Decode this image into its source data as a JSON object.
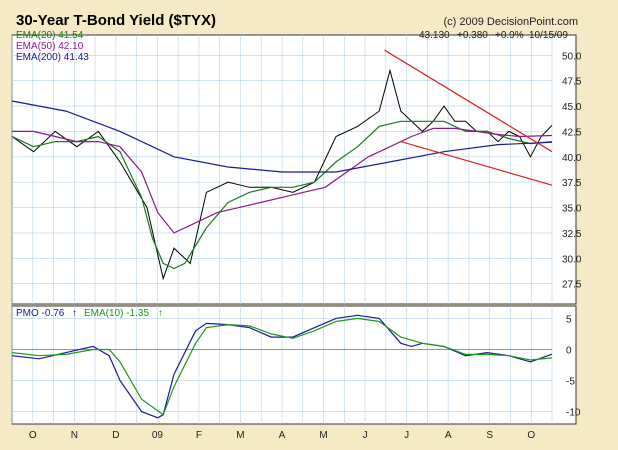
{
  "title": "30-Year T-Bond Yield ($TYX)",
  "copyright": "(c) 2009 DecisionPoint.com",
  "quote": {
    "last": "43.130",
    "change": "+0.380",
    "pct": "+0.9%",
    "date": "10/15/09"
  },
  "colors": {
    "background": "#f6e9c6",
    "plot": "#ffffff",
    "grid": "#b7d3e6",
    "price": "#000000",
    "ema20": "#1a7a1a",
    "ema50": "#8a1a8a",
    "ema200": "#1a1a9a",
    "trendline": "#e02020",
    "pmo": "#1a1a9a",
    "pmo_signal": "#1a9a1a",
    "zero_line": "#c88a3a"
  },
  "legend": {
    "ema20": "EMA(20) 41.54",
    "ema50": "EMA(50) 42.10",
    "ema200": "EMA(200) 41.43",
    "pmo": "PMO -0.76",
    "pmo_arrow": "↑",
    "pmo_ema": "EMA(10) -1.35",
    "pmo_ema_arrow": "↑"
  },
  "chart_data": [
    {
      "type": "line",
      "title": "30-Year T-Bond Yield ($TYX)",
      "x_ticks": [
        "O",
        "N",
        "D",
        "09",
        "F",
        "M",
        "A",
        "M",
        "J",
        "J",
        "A",
        "S",
        "O"
      ],
      "y_ticks": [
        "50.0",
        "47.5",
        "45.0",
        "42.5",
        "40.0",
        "37.5",
        "35.0",
        "32.5",
        "30.0",
        "27.5"
      ],
      "ylim": [
        25.5,
        52.0
      ],
      "x_range": [
        0,
        100
      ],
      "grid": true,
      "series": [
        {
          "name": "Price",
          "x": [
            0,
            4,
            8,
            12,
            16,
            20,
            25,
            28,
            30,
            33,
            36,
            40,
            44,
            48,
            52,
            56,
            60,
            64,
            68,
            70,
            72,
            74,
            76,
            78,
            80,
            82,
            84,
            86,
            88,
            90,
            92,
            94,
            96,
            98,
            100
          ],
          "values": [
            42,
            40.5,
            42.5,
            41,
            42.5,
            39.5,
            35,
            28,
            31,
            29.5,
            36.5,
            37.5,
            37,
            37,
            36.5,
            37.5,
            42,
            43,
            44.5,
            48.5,
            44.5,
            43.5,
            42.5,
            43.5,
            45,
            43.5,
            43.5,
            42.5,
            42.5,
            41.5,
            42.5,
            42,
            40,
            42,
            43.1
          ]
        },
        {
          "name": "EMA(20) 41.54",
          "x": [
            0,
            4,
            8,
            12,
            16,
            20,
            24,
            26,
            28,
            30,
            32,
            36,
            40,
            44,
            48,
            52,
            56,
            60,
            64,
            68,
            72,
            76,
            80,
            84,
            88,
            92,
            96,
            100
          ],
          "values": [
            42,
            41,
            41.5,
            41.5,
            42,
            40.5,
            36,
            32,
            29.5,
            29,
            29.5,
            33,
            35.5,
            36.5,
            37,
            37,
            37.5,
            39.5,
            41,
            43,
            43.5,
            43.5,
            43.5,
            42.5,
            42.5,
            41.8,
            41.3,
            41.5
          ]
        },
        {
          "name": "EMA(50) 42.10",
          "x": [
            0,
            4,
            8,
            12,
            16,
            20,
            24,
            27,
            30,
            34,
            38,
            42,
            46,
            50,
            54,
            58,
            62,
            66,
            70,
            74,
            78,
            82,
            86,
            90,
            94,
            100
          ],
          "values": [
            42.5,
            42.5,
            42,
            41.5,
            41.5,
            41,
            38.5,
            34.5,
            32.5,
            33.5,
            34.5,
            35,
            35.5,
            36,
            36.5,
            37,
            38.5,
            40,
            41,
            42,
            42.8,
            42.8,
            42.5,
            42.2,
            42,
            42.1
          ]
        },
        {
          "name": "EMA(200) 41.43",
          "x": [
            0,
            10,
            20,
            30,
            40,
            50,
            60,
            70,
            80,
            90,
            100
          ],
          "values": [
            45.5,
            44.5,
            42.5,
            40,
            39,
            38.5,
            38.5,
            39.5,
            40.5,
            41.2,
            41.43
          ]
        },
        {
          "name": "Upper trendline",
          "x": [
            69,
            100
          ],
          "values": [
            50.5,
            40.5
          ]
        },
        {
          "name": "Lower trendline",
          "x": [
            72,
            100
          ],
          "values": [
            41.5,
            37.2
          ]
        }
      ]
    },
    {
      "type": "line",
      "title": "PMO",
      "y_ticks": [
        "5",
        "0",
        "-5",
        "-10"
      ],
      "ylim": [
        -12,
        7
      ],
      "x_range": [
        0,
        100
      ],
      "grid": true,
      "series": [
        {
          "name": "PMO -0.76",
          "x": [
            0,
            5,
            10,
            15,
            18,
            20,
            24,
            27,
            28,
            30,
            34,
            36,
            40,
            44,
            48,
            52,
            56,
            60,
            64,
            68,
            72,
            74,
            76,
            80,
            84,
            88,
            92,
            96,
            100
          ],
          "values": [
            -1,
            -1.5,
            -0.5,
            0.5,
            -1,
            -5,
            -10,
            -11,
            -10.5,
            -4,
            3,
            4.2,
            4,
            3.5,
            2,
            2,
            3.5,
            5,
            5.5,
            5,
            1,
            0.5,
            1,
            0.5,
            -1,
            -0.5,
            -1,
            -2,
            -0.76
          ]
        },
        {
          "name": "EMA(10) -1.35",
          "x": [
            0,
            5,
            10,
            15,
            18,
            20,
            24,
            28,
            30,
            34,
            36,
            40,
            44,
            48,
            52,
            56,
            60,
            64,
            68,
            72,
            76,
            80,
            84,
            88,
            92,
            96,
            100
          ],
          "values": [
            -0.5,
            -1,
            -0.8,
            0,
            0,
            -2,
            -8,
            -10.5,
            -6,
            1,
            3.5,
            4,
            3.8,
            2.5,
            1.8,
            3,
            4.5,
            5,
            4.5,
            2,
            1,
            0.5,
            -0.8,
            -0.8,
            -1,
            -1.7,
            -1.35
          ]
        }
      ]
    }
  ]
}
